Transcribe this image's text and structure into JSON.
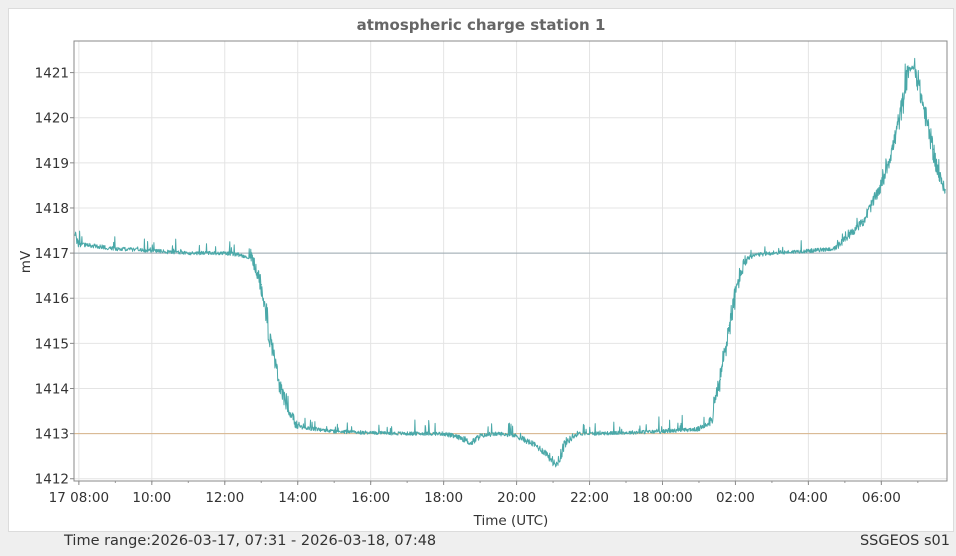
{
  "footer": {
    "time_range_label": "Time range:",
    "time_range_value": "2026-03-17, 07:31 - 2026-03-18, 07:48",
    "station_id": "SSGEOS s01"
  },
  "chart_data": {
    "type": "line",
    "title": "atmospheric charge station 1",
    "xlabel": "Time (UTC)",
    "ylabel": "mV",
    "x_tick_labels": [
      "17 08:00",
      "10:00",
      "12:00",
      "14:00",
      "16:00",
      "18:00",
      "20:00",
      "22:00",
      "18 00:00",
      "02:00",
      "04:00",
      "06:00"
    ],
    "y_tick_labels": [
      "1412",
      "1413",
      "1414",
      "1415",
      "1416",
      "1417",
      "1418",
      "1419",
      "1420",
      "1421"
    ],
    "x_range": [
      "2026-03-17 07:52",
      "2026-03-18 07:48"
    ],
    "ylim": [
      1411.95,
      1421.7
    ],
    "grid": true,
    "colors": {
      "series": "#4aa8a8",
      "ref_upper": "#9aa8b0",
      "ref_lower": "#d8b48a",
      "grid": "#e4e4e4"
    },
    "reference_lines": [
      {
        "y": 1417,
        "color": "#9aa8b0"
      },
      {
        "y": 1413,
        "color": "#d8b48a"
      }
    ],
    "series": [
      {
        "x": [
          "2026-03-17 07:54",
          "2026-03-17 08:00",
          "2026-03-17 08:30",
          "2026-03-17 09:00",
          "2026-03-17 10:00",
          "2026-03-17 11:00",
          "2026-03-17 12:00",
          "2026-03-17 12:30",
          "2026-03-17 12:45",
          "2026-03-17 13:00",
          "2026-03-17 13:15",
          "2026-03-17 13:30",
          "2026-03-17 13:45",
          "2026-03-17 14:00",
          "2026-03-17 15:00",
          "2026-03-17 16:00",
          "2026-03-17 17:00",
          "2026-03-17 18:00",
          "2026-03-17 18:30",
          "2026-03-17 18:45",
          "2026-03-17 19:00",
          "2026-03-17 19:30",
          "2026-03-17 20:00",
          "2026-03-17 20:30",
          "2026-03-17 20:50",
          "2026-03-17 21:05",
          "2026-03-17 21:20",
          "2026-03-17 21:40",
          "2026-03-17 22:00",
          "2026-03-17 23:00",
          "2026-03-18 00:00",
          "2026-03-18 01:00",
          "2026-03-18 01:20",
          "2026-03-18 01:35",
          "2026-03-18 01:50",
          "2026-03-18 02:05",
          "2026-03-18 02:15",
          "2026-03-18 02:30",
          "2026-03-18 03:00",
          "2026-03-18 04:00",
          "2026-03-18 04:45",
          "2026-03-18 05:00",
          "2026-03-18 05:30",
          "2026-03-18 06:00",
          "2026-03-18 06:20",
          "2026-03-18 06:35",
          "2026-03-18 06:45",
          "2026-03-18 06:55",
          "2026-03-18 07:10",
          "2026-03-18 07:25",
          "2026-03-18 07:35",
          "2026-03-18 07:45"
        ],
        "values": [
          1417.4,
          1417.2,
          1417.15,
          1417.1,
          1417.05,
          1417.0,
          1417.0,
          1416.95,
          1416.9,
          1416.3,
          1415.1,
          1414.1,
          1413.5,
          1413.15,
          1413.05,
          1413.02,
          1413.0,
          1413.0,
          1412.9,
          1412.78,
          1412.95,
          1413.0,
          1412.95,
          1412.75,
          1412.55,
          1412.3,
          1412.8,
          1413.0,
          1413.0,
          1413.02,
          1413.05,
          1413.1,
          1413.3,
          1414.2,
          1415.4,
          1416.4,
          1416.8,
          1416.95,
          1417.0,
          1417.05,
          1417.1,
          1417.3,
          1417.7,
          1418.5,
          1419.4,
          1420.3,
          1421.1,
          1421.1,
          1420.2,
          1419.3,
          1418.7,
          1418.4
        ]
      }
    ]
  }
}
